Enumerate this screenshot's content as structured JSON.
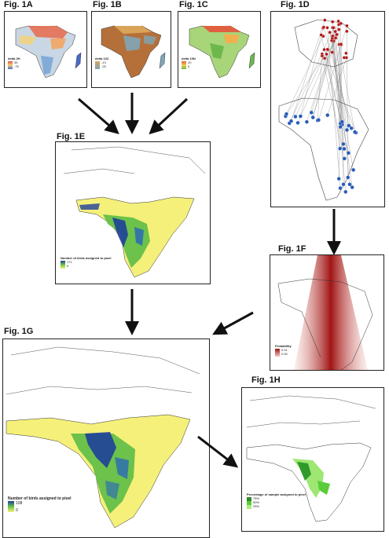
{
  "figures": {
    "a": {
      "label": "Fig. 1A",
      "legend_title": "delta 2H",
      "ticks": [
        "35",
        "-75"
      ]
    },
    "b": {
      "label": "Fig. 1B",
      "legend_title": "delta 13C",
      "ticks": [
        "-13",
        "-25"
      ]
    },
    "c": {
      "label": "Fig. 1C",
      "legend_title": "delta 15N",
      "ticks": [
        "20",
        "5"
      ]
    },
    "d": {
      "label": "Fig. 1D"
    },
    "e": {
      "label": "Fig. 1E",
      "legend_title": "Number of birds assigned to pixel",
      "ticks": [
        "171",
        "0"
      ]
    },
    "f": {
      "label": "Fig. 1F",
      "legend_title": "Probability",
      "ticks": [
        "0.01",
        "0.00"
      ]
    },
    "g": {
      "label": "Fig. 1G",
      "legend_title": "Number of birds assigned to pixel",
      "ticks": [
        "108",
        "0"
      ]
    },
    "h": {
      "label": "Fig. 1H",
      "legend_title": "Percentage of sample assigned to pixel",
      "ticks": [
        "75%",
        "50%",
        "25%"
      ]
    }
  },
  "colors": {
    "border": "#222222",
    "arrow": "#111111",
    "yellow": "#f5f07a",
    "green": "#6cc24a",
    "blue": "#1f3f9a",
    "red": "#a01414",
    "pink": "#f2c6c0"
  }
}
